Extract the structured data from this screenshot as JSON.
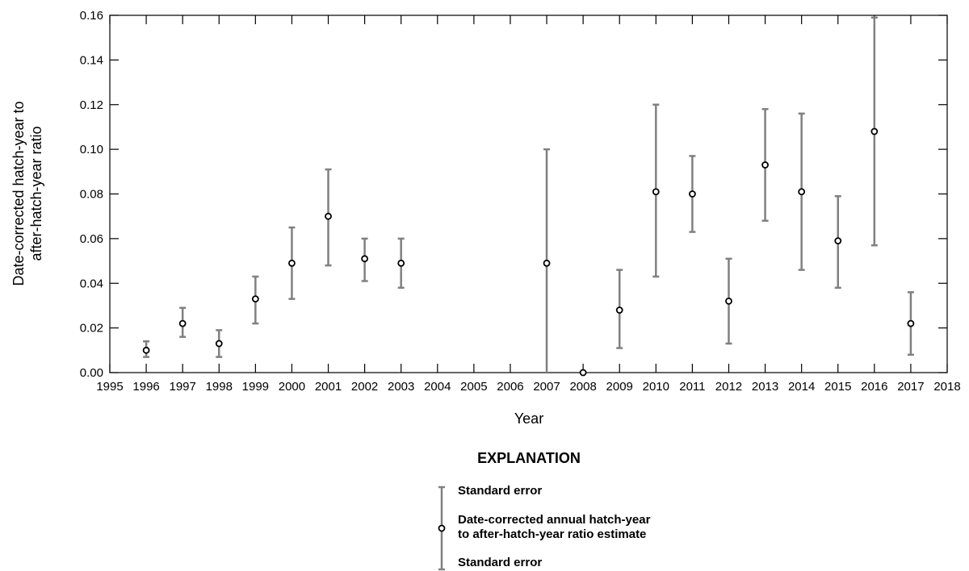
{
  "chart_data": {
    "type": "scatter",
    "xlabel": "Year",
    "ylabel_lines": [
      "Date-corrected hatch-year to",
      "after-hatch-year ratio"
    ],
    "xlim": [
      1995,
      2018
    ],
    "ylim": [
      0,
      0.16
    ],
    "x_ticks": [
      1995,
      1996,
      1997,
      1998,
      1999,
      2000,
      2001,
      2002,
      2003,
      2004,
      2005,
      2006,
      2007,
      2008,
      2009,
      2010,
      2011,
      2012,
      2013,
      2014,
      2015,
      2016,
      2017,
      2018
    ],
    "y_ticks": [
      "0.00",
      "0.02",
      "0.04",
      "0.06",
      "0.08",
      "0.10",
      "0.12",
      "0.14",
      "0.16"
    ],
    "grid": false,
    "points": [
      {
        "x": 1996,
        "y": 0.01,
        "lower": 0.007,
        "upper": 0.014
      },
      {
        "x": 1997,
        "y": 0.022,
        "lower": 0.016,
        "upper": 0.029
      },
      {
        "x": 1998,
        "y": 0.013,
        "lower": 0.007,
        "upper": 0.019
      },
      {
        "x": 1999,
        "y": 0.033,
        "lower": 0.022,
        "upper": 0.043
      },
      {
        "x": 2000,
        "y": 0.049,
        "lower": 0.033,
        "upper": 0.065
      },
      {
        "x": 2001,
        "y": 0.07,
        "lower": 0.048,
        "upper": 0.091
      },
      {
        "x": 2002,
        "y": 0.051,
        "lower": 0.041,
        "upper": 0.06
      },
      {
        "x": 2003,
        "y": 0.049,
        "lower": 0.038,
        "upper": 0.06
      },
      {
        "x": 2007,
        "y": 0.049,
        "lower": 0.0,
        "upper": 0.1
      },
      {
        "x": 2008,
        "y": 0.0,
        "lower": 0.0,
        "upper": 0.0
      },
      {
        "x": 2009,
        "y": 0.028,
        "lower": 0.011,
        "upper": 0.046
      },
      {
        "x": 2010,
        "y": 0.081,
        "lower": 0.043,
        "upper": 0.12
      },
      {
        "x": 2011,
        "y": 0.08,
        "lower": 0.063,
        "upper": 0.097
      },
      {
        "x": 2012,
        "y": 0.032,
        "lower": 0.013,
        "upper": 0.051
      },
      {
        "x": 2013,
        "y": 0.093,
        "lower": 0.068,
        "upper": 0.118
      },
      {
        "x": 2014,
        "y": 0.081,
        "lower": 0.046,
        "upper": 0.116
      },
      {
        "x": 2015,
        "y": 0.059,
        "lower": 0.038,
        "upper": 0.079
      },
      {
        "x": 2016,
        "y": 0.108,
        "lower": 0.057,
        "upper": 0.159
      },
      {
        "x": 2017,
        "y": 0.022,
        "lower": 0.008,
        "upper": 0.036
      }
    ],
    "legend": {
      "title": "EXPLANATION",
      "upper_label": "Standard error",
      "point_label_lines": [
        "Date-corrected annual hatch-year",
        "to after-hatch-year ratio estimate"
      ],
      "lower_label": "Standard error"
    },
    "colors": {
      "error_bar": "#808080",
      "marker_edge": "#000000",
      "marker_fill": "#ffffff",
      "axis": "#000000"
    }
  }
}
